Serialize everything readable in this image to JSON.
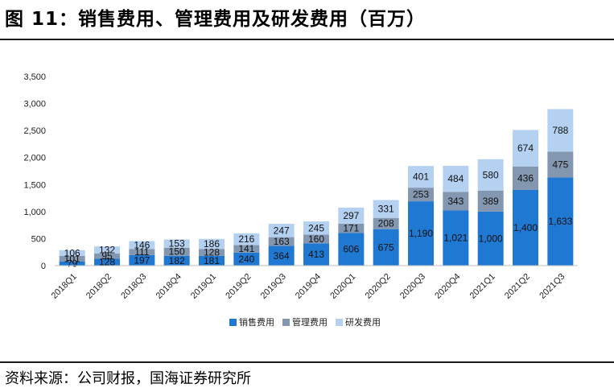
{
  "header": {
    "title": "图 11：销售费用、管理费用及研发费用（百万）"
  },
  "footer": {
    "source": "资料来源：公司财报，国海证券研究所"
  },
  "chart_data": {
    "type": "bar",
    "stacked": true,
    "categories": [
      "2018Q1",
      "2018Q2",
      "2018Q3",
      "2018Q4",
      "2019Q1",
      "2019Q2",
      "2019Q3",
      "2019Q4",
      "2020Q1",
      "2020Q2",
      "2020Q3",
      "2020Q4",
      "2021Q1",
      "2021Q2",
      "2021Q3"
    ],
    "series": [
      {
        "name": "销售费用",
        "color": "#1f78d1",
        "values": [
          79,
          128,
          197,
          182,
          181,
          240,
          364,
          413,
          606,
          675,
          1190,
          1021,
          1000,
          1400,
          1633
        ]
      },
      {
        "name": "管理费用",
        "color": "#8497b0",
        "values": [
          101,
          95,
          111,
          150,
          128,
          141,
          163,
          160,
          171,
          208,
          253,
          343,
          389,
          436,
          475
        ]
      },
      {
        "name": "研发费用",
        "color": "#b4d1f2",
        "values": [
          106,
          132,
          146,
          153,
          186,
          216,
          247,
          245,
          297,
          331,
          401,
          484,
          580,
          674,
          788
        ]
      }
    ],
    "data_labels": [
      [
        "79",
        "128",
        "197",
        "182",
        "181",
        "240",
        "364",
        "413",
        "606",
        "675",
        "1,190",
        "1,021",
        "1,000",
        "1,400",
        "1,633"
      ],
      [
        "101",
        "95",
        "111",
        "150",
        "128",
        "141",
        "163",
        "160",
        "171",
        "208",
        "253",
        "343",
        "389",
        "436",
        "475"
      ],
      [
        "106",
        "132",
        "146",
        "153",
        "186",
        "216",
        "247",
        "245",
        "297",
        "331",
        "401",
        "484",
        "580",
        "674",
        "788"
      ]
    ],
    "y_ticks": [
      "0",
      "500",
      "1,000",
      "1,500",
      "2,000",
      "2,500",
      "3,000",
      "3,500"
    ],
    "ylim": [
      0,
      3500
    ],
    "grid": false,
    "legend_position": "bottom"
  }
}
